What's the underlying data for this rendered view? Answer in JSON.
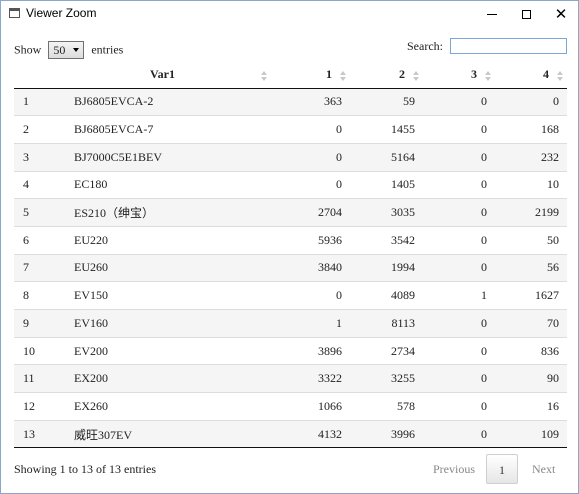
{
  "window": {
    "title": "Viewer Zoom"
  },
  "controls": {
    "show_label": "Show",
    "entries_select_value": "50",
    "entries_label": "entries",
    "search_label": "Search:",
    "search_value": ""
  },
  "table": {
    "headers": {
      "index": "",
      "var1": "Var1",
      "c1": "1",
      "c2": "2",
      "c3": "3",
      "c4": "4"
    },
    "rows": [
      {
        "idx": "1",
        "var1": "BJ6805EVCA-2",
        "c1": "363",
        "c2": "59",
        "c3": "0",
        "c4": "0"
      },
      {
        "idx": "2",
        "var1": "BJ6805EVCA-7",
        "c1": "0",
        "c2": "1455",
        "c3": "0",
        "c4": "168"
      },
      {
        "idx": "3",
        "var1": "BJ7000C5E1BEV",
        "c1": "0",
        "c2": "5164",
        "c3": "0",
        "c4": "232"
      },
      {
        "idx": "4",
        "var1": "EC180",
        "c1": "0",
        "c2": "1405",
        "c3": "0",
        "c4": "10"
      },
      {
        "idx": "5",
        "var1": "ES210（绅宝）",
        "c1": "2704",
        "c2": "3035",
        "c3": "0",
        "c4": "2199"
      },
      {
        "idx": "6",
        "var1": "EU220",
        "c1": "5936",
        "c2": "3542",
        "c3": "0",
        "c4": "50"
      },
      {
        "idx": "7",
        "var1": "EU260",
        "c1": "3840",
        "c2": "1994",
        "c3": "0",
        "c4": "56"
      },
      {
        "idx": "8",
        "var1": "EV150",
        "c1": "0",
        "c2": "4089",
        "c3": "1",
        "c4": "1627"
      },
      {
        "idx": "9",
        "var1": "EV160",
        "c1": "1",
        "c2": "8113",
        "c3": "0",
        "c4": "70"
      },
      {
        "idx": "10",
        "var1": "EV200",
        "c1": "3896",
        "c2": "2734",
        "c3": "0",
        "c4": "836"
      },
      {
        "idx": "11",
        "var1": "EX200",
        "c1": "3322",
        "c2": "3255",
        "c3": "0",
        "c4": "90"
      },
      {
        "idx": "12",
        "var1": "EX260",
        "c1": "1066",
        "c2": "578",
        "c3": "0",
        "c4": "16"
      },
      {
        "idx": "13",
        "var1": "威旺307EV",
        "c1": "4132",
        "c2": "3996",
        "c3": "0",
        "c4": "109"
      }
    ]
  },
  "footer": {
    "info": "Showing 1 to 13 of 13 entries",
    "previous_label": "Previous",
    "current_page": "1",
    "next_label": "Next"
  }
}
